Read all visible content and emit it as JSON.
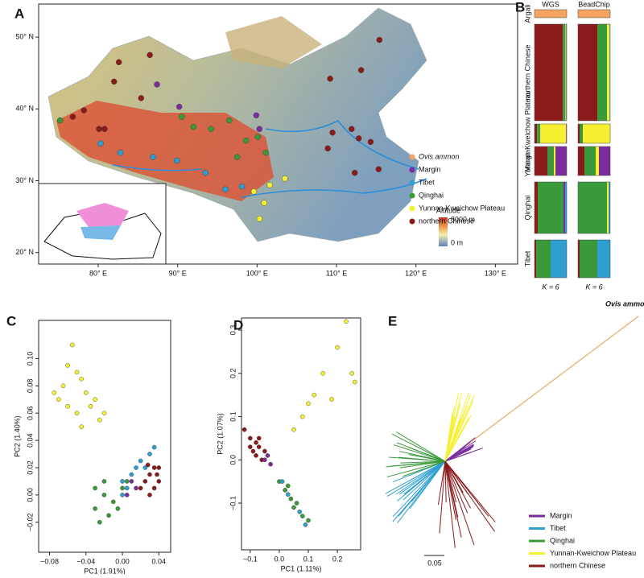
{
  "panel_labels": [
    "A",
    "B",
    "C",
    "D",
    "E"
  ],
  "chart_data": [
    {
      "type": "map",
      "xlim": [
        72.5,
        132.8
      ],
      "ylim": [
        18.4,
        54.6
      ],
      "xticks": [
        {
          "value": 80,
          "label": "80° E"
        },
        {
          "value": 90,
          "label": "90° E"
        },
        {
          "value": 100,
          "label": "100° E"
        },
        {
          "value": 110,
          "label": "110° E"
        },
        {
          "value": 120,
          "label": "120° E"
        },
        {
          "value": 130,
          "label": "130° E"
        }
      ],
      "yticks": [
        {
          "value": 20,
          "label": "20° N"
        },
        {
          "value": 30,
          "label": "30° N"
        },
        {
          "value": 40,
          "label": "40° N"
        },
        {
          "value": 50,
          "label": "50° N"
        }
      ],
      "series": [
        {
          "name": "Ovis ammon",
          "color": "#f4a460",
          "x": [],
          "y": []
        },
        {
          "name": "Margin",
          "color": "#7b2d9e",
          "x": [
            87.4,
            90.2,
            99.9,
            100.3
          ],
          "y": [
            43.4,
            40.3,
            39.1,
            37.2
          ]
        },
        {
          "name": "Tibet",
          "color": "#2f9fd0",
          "x": [
            82.8,
            86.9,
            89.9,
            93.5,
            96.0,
            98.1,
            80.3
          ],
          "y": [
            33.9,
            33.3,
            32.8,
            31.1,
            28.8,
            29.2,
            35.2
          ]
        },
        {
          "name": "Qinghai",
          "color": "#3a9a3a",
          "x": [
            90.5,
            92.0,
            94.2,
            96.5,
            98.6,
            100.1,
            101.1,
            97.5,
            75.2
          ],
          "y": [
            38.9,
            37.5,
            37.2,
            38.4,
            35.6,
            36.1,
            33.9,
            33.3,
            38.4
          ]
        },
        {
          "name": "Yunnan-Kweichow Plateau",
          "color": "#f5f032",
          "x": [
            99.6,
            100.9,
            101.6,
            100.3,
            103.5
          ],
          "y": [
            28.5,
            26.9,
            29.4,
            24.7,
            30.3
          ]
        },
        {
          "name": "northern Chinese",
          "color": "#8b1a1a",
          "x": [
            82.6,
            86.5,
            82.0,
            85.4,
            78.2,
            76.8,
            80.1,
            80.8,
            109.5,
            111.9,
            112.8,
            108.9,
            115.4,
            109.2,
            113.1,
            114.3,
            115.3,
            112.3
          ],
          "y": [
            46.5,
            47.5,
            43.8,
            41.5,
            39.8,
            38.9,
            37.2,
            37.2,
            36.7,
            37.2,
            35.9,
            34.5,
            49.6,
            44.2,
            45.4,
            35.4,
            31.6,
            31.1
          ]
        }
      ],
      "colorbar": {
        "title": "Altitude",
        "labels": [
          "8000 m",
          "0 m"
        ]
      }
    },
    {
      "type": "structure",
      "title": "WGS",
      "xlabel": "K = 6",
      "categories": [
        "Argali",
        "northern Chinese",
        "Yunnan-Kweichow Plateau",
        "Margin",
        "Qinghai",
        "Tibet"
      ],
      "series": [
        {
          "color": "#f4a460",
          "values": [
            1,
            0,
            0,
            0,
            0,
            0
          ]
        },
        {
          "color": "#8b1a1a",
          "values": [
            0,
            0.88,
            0.08,
            0.4,
            0.1,
            0.05
          ]
        },
        {
          "color": "#3a9a3a",
          "values": [
            0,
            0.08,
            0.1,
            0.2,
            0.8,
            0.45
          ]
        },
        {
          "color": "#f5f032",
          "values": [
            0,
            0.02,
            0.8,
            0.05,
            0,
            0
          ]
        },
        {
          "color": "#7b2d9e",
          "values": [
            0,
            0.01,
            0.02,
            0.35,
            0.05,
            0
          ]
        },
        {
          "color": "#2f9fd0",
          "values": [
            0,
            0.01,
            0,
            0,
            0.05,
            0.5
          ]
        }
      ]
    },
    {
      "type": "structure",
      "title": "BeadChip",
      "xlabel": "K = 6",
      "series": [
        {
          "color": "#f4a460",
          "values": [
            1,
            0,
            0,
            0,
            0,
            0
          ]
        },
        {
          "color": "#8b1a1a",
          "values": [
            0,
            0.6,
            0.05,
            0.2,
            0,
            0.05
          ]
        },
        {
          "color": "#3a9a3a",
          "values": [
            0,
            0.3,
            0.1,
            0.35,
            0.9,
            0.55
          ]
        },
        {
          "color": "#f5f032",
          "values": [
            0,
            0.08,
            0.85,
            0.1,
            0.05,
            0
          ]
        },
        {
          "color": "#7b2d9e",
          "values": [
            0,
            0,
            0,
            0.35,
            0,
            0
          ]
        },
        {
          "color": "#2f9fd0",
          "values": [
            0,
            0.02,
            0,
            0,
            0.05,
            0.4
          ]
        }
      ]
    },
    {
      "type": "scatter",
      "xlabel": "PC1 (1.91%)",
      "ylabel": "PC2 (1.40%)",
      "xlim": [
        -0.092,
        0.053
      ],
      "ylim": [
        -0.042,
        0.128
      ],
      "xticks": [
        {
          "value": -0.08,
          "label": "−0.08"
        },
        {
          "value": -0.04,
          "label": "−0.04"
        },
        {
          "value": 0,
          "label": "0.00"
        },
        0.04
      ],
      "yticks": [
        {
          "value": -0.02,
          "label": "−0.02"
        },
        {
          "value": 0,
          "label": "0.00"
        },
        0.02,
        0.04,
        0.06,
        0.08,
        {
          "value": 0.1,
          "label": "0.10"
        }
      ],
      "series": [
        {
          "color": "#f5f032",
          "x": [
            -0.055,
            -0.06,
            -0.05,
            -0.045,
            -0.07,
            -0.065,
            -0.04,
            -0.03,
            -0.035,
            -0.02,
            -0.05,
            -0.06,
            -0.075,
            -0.045,
            -0.025
          ],
          "y": [
            0.11,
            0.095,
            0.09,
            0.085,
            0.07,
            0.08,
            0.075,
            0.07,
            0.065,
            0.06,
            0.06,
            0.065,
            0.075,
            0.05,
            0.055
          ]
        },
        {
          "color": "#3a9a3a",
          "x": [
            -0.02,
            -0.03,
            -0.025,
            -0.015,
            -0.01,
            0,
            -0.02,
            -0.005,
            -0.03,
            0.005
          ],
          "y": [
            0,
            -0.01,
            -0.02,
            -0.015,
            -0.005,
            0.005,
            0.01,
            -0.01,
            0.005,
            0.01
          ]
        },
        {
          "color": "#2f9fd0",
          "x": [
            0,
            0.01,
            0.02,
            0.03,
            0.015,
            0.005,
            0.025,
            0.035,
            0
          ],
          "y": [
            0.01,
            0.015,
            0.025,
            0.03,
            0.02,
            0.005,
            0.02,
            0.035,
            0
          ]
        },
        {
          "color": "#8b1a1a",
          "x": [
            0.025,
            0.03,
            0.035,
            0.04,
            0.03,
            0.035,
            0.04,
            0.02,
            0.038,
            0.028
          ],
          "y": [
            0.01,
            0.015,
            0.02,
            0.01,
            0,
            0.005,
            0.02,
            0.005,
            0.015,
            0.022
          ]
        },
        {
          "color": "#7b2d9e",
          "x": [
            0.01,
            0.015,
            0.005
          ],
          "y": [
            0.01,
            0.005,
            0
          ]
        }
      ]
    },
    {
      "type": "scatter",
      "xlabel": "PC1 (1.11%)",
      "ylabel": "PC2 (1.07%)",
      "xlim": [
        -0.13,
        0.28
      ],
      "ylim": [
        -0.208,
        0.328
      ],
      "xticks": [
        {
          "value": -0.1,
          "label": "−0.1"
        },
        {
          "value": 0,
          "label": "0.0"
        },
        0.1,
        0.2
      ],
      "yticks": [
        {
          "value": -0.1,
          "label": "−0.1"
        },
        {
          "value": 0,
          "label": "0.0"
        },
        0.1,
        0.2,
        0.3
      ],
      "series": [
        {
          "color": "#f5f032",
          "x": [
            0.23,
            0.25,
            0.26,
            0.2,
            0.15,
            0.1,
            0.12,
            0.08,
            0.05,
            0.18
          ],
          "y": [
            0.32,
            0.2,
            0.18,
            0.26,
            0.2,
            0.13,
            0.15,
            0.1,
            0.07,
            0.14
          ]
        },
        {
          "color": "#8b1a1a",
          "x": [
            -0.12,
            -0.1,
            -0.08,
            -0.07,
            -0.09,
            -0.06,
            -0.08,
            -0.1,
            -0.05,
            -0.07
          ],
          "y": [
            0.07,
            0.05,
            0.04,
            0.03,
            0.02,
            0,
            0.01,
            0.03,
            0.02,
            0.05
          ]
        },
        {
          "color": "#7b2d9e",
          "x": [
            -0.05,
            -0.03,
            -0.04
          ],
          "y": [
            0,
            -0.01,
            0.01
          ]
        },
        {
          "color": "#3a9a3a",
          "x": [
            0,
            0.02,
            0.04,
            0.06,
            0.08,
            0.1,
            0.05,
            0.03
          ],
          "y": [
            -0.05,
            -0.07,
            -0.09,
            -0.1,
            -0.13,
            -0.14,
            -0.11,
            -0.06
          ]
        },
        {
          "color": "#2f9fd0",
          "x": [
            0.01,
            0.03,
            0.07,
            0.09
          ],
          "y": [
            -0.05,
            -0.08,
            -0.12,
            -0.15
          ]
        }
      ]
    },
    {
      "type": "tree",
      "annotation": "Ovis ammon",
      "outgroup_color": "#f4a460",
      "scale": 0.05,
      "series": [
        {
          "name": "Margin",
          "color": "#7b2d9e"
        },
        {
          "name": "Tibet",
          "color": "#2f9fd0"
        },
        {
          "name": "Qinghai",
          "color": "#3a9a3a"
        },
        {
          "name": "Yunnan-Kweichow Plateau",
          "color": "#f5f032"
        },
        {
          "name": "northern Chinese",
          "color": "#8b1a1a"
        }
      ]
    }
  ]
}
